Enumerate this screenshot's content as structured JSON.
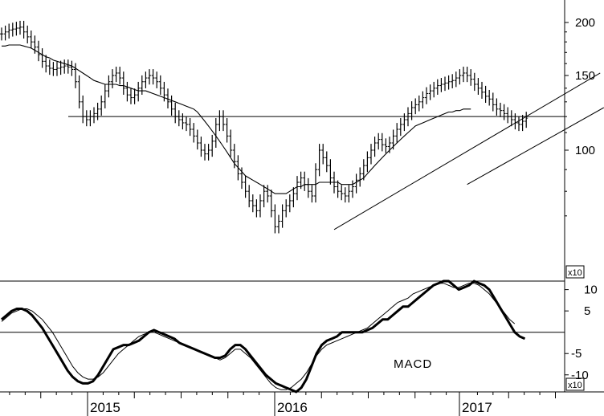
{
  "chart_data": [
    {
      "type": "ohlc",
      "x_unit": "weekly bars (index from start of Jul 2014)",
      "yscale": "log",
      "ylim": [
        62,
        215
      ],
      "y_ticks": [
        200,
        150,
        100
      ],
      "x_tick_labels": [
        "2015",
        "2016",
        "2017"
      ],
      "multiplier_label": "x10",
      "price_close": [
        188,
        190,
        192,
        193,
        194,
        195,
        190,
        185,
        180,
        175,
        168,
        162,
        158,
        156,
        155,
        156,
        157,
        158,
        157,
        155,
        145,
        130,
        120,
        118,
        120,
        122,
        125,
        130,
        138,
        145,
        150,
        152,
        148,
        140,
        135,
        133,
        135,
        140,
        145,
        148,
        150,
        148,
        145,
        140,
        135,
        130,
        125,
        120,
        118,
        116,
        115,
        112,
        108,
        104,
        100,
        98,
        100,
        105,
        115,
        120,
        115,
        108,
        100,
        94,
        88,
        84,
        80,
        76,
        74,
        72,
        76,
        80,
        78,
        72,
        66,
        68,
        72,
        74,
        76,
        79,
        84,
        86,
        83,
        80,
        78,
        90,
        100,
        96,
        92,
        86,
        82,
        80,
        79,
        78,
        80,
        82,
        85,
        88,
        92,
        96,
        100,
        104,
        106,
        103,
        102,
        104,
        108,
        112,
        115,
        118,
        122,
        126,
        128,
        130,
        133,
        136,
        138,
        140,
        142,
        143,
        144,
        145,
        146,
        148,
        150,
        152,
        150,
        147,
        143,
        140,
        137,
        134,
        132,
        128,
        125,
        124,
        122,
        120,
        118,
        116,
        115,
        117,
        119
      ],
      "ma_long": [
        176,
        176,
        177,
        177,
        177,
        177,
        176,
        175,
        174,
        172,
        170,
        168,
        166,
        165,
        163,
        162,
        161,
        160,
        159,
        158,
        156,
        154,
        152,
        150,
        148,
        146,
        145,
        144,
        143,
        143,
        143,
        143,
        142,
        142,
        141,
        140,
        139,
        138,
        138,
        138,
        137,
        136,
        135,
        134,
        133,
        132,
        131,
        130,
        129,
        128,
        127,
        126,
        125,
        123,
        120,
        117,
        114,
        111,
        108,
        105,
        102,
        99,
        96,
        93,
        91,
        89,
        87,
        86,
        85,
        84,
        83,
        82,
        81,
        80,
        79,
        79,
        79,
        79,
        80,
        81,
        82,
        82,
        83,
        83,
        83,
        83,
        84,
        84,
        84,
        84,
        84,
        84,
        83,
        83,
        83,
        83,
        84,
        85,
        86,
        88,
        90,
        92,
        94,
        96,
        98,
        100,
        102,
        104,
        106,
        108,
        110,
        112,
        114,
        115,
        116,
        117,
        118,
        119,
        120,
        121,
        122,
        123,
        123,
        124,
        124,
        125,
        125,
        125
      ],
      "horizontal_line": 120,
      "trendline_rising_1": {
        "from": [
          90,
          65
        ],
        "to": [
          162,
          152
        ]
      },
      "trendline_rising_2": {
        "from": [
          126,
          83
        ],
        "to": [
          163,
          126
        ]
      }
    },
    {
      "type": "line",
      "title": "MACD",
      "ylim": [
        -14,
        12
      ],
      "y_ticks": [
        10,
        5,
        -5,
        -10
      ],
      "multiplier_label": "x10",
      "macd": [
        3,
        4,
        5,
        5.5,
        5.5,
        5,
        4,
        2.5,
        1,
        -1,
        -3,
        -5,
        -7,
        -9,
        -10.5,
        -11.5,
        -12,
        -12,
        -11.5,
        -10,
        -8,
        -6,
        -4,
        -3.5,
        -3,
        -3,
        -2.5,
        -2,
        -1,
        0,
        0.5,
        0,
        -0.5,
        -1,
        -1.5,
        -2.5,
        -3,
        -3.5,
        -4,
        -4.5,
        -5,
        -5.5,
        -6,
        -6,
        -5.5,
        -4,
        -3,
        -3,
        -4,
        -5.5,
        -7,
        -8.5,
        -10,
        -11,
        -12,
        -12.5,
        -13,
        -13.5,
        -14,
        -13,
        -11,
        -8,
        -5,
        -3,
        -2,
        -1.5,
        -1,
        0,
        0,
        0,
        0,
        0,
        0.5,
        1,
        2,
        3,
        3,
        4,
        5,
        6,
        6,
        7,
        8,
        9,
        10,
        11,
        11.5,
        12,
        12,
        11,
        10,
        10.5,
        11,
        12,
        11.5,
        11,
        10,
        8,
        6,
        4,
        2,
        0,
        -1,
        -1.5
      ],
      "signal": [
        2.5,
        3.5,
        4.5,
        5,
        5.5,
        5.5,
        5,
        4,
        3,
        1.5,
        0,
        -2,
        -4,
        -6,
        -8,
        -9.5,
        -10.5,
        -11,
        -11,
        -10.5,
        -9.5,
        -8,
        -6.5,
        -5,
        -4,
        -3,
        -2,
        -1,
        -0.5,
        0,
        0,
        -0.5,
        -1,
        -1.5,
        -2,
        -2.5,
        -3,
        -3.5,
        -4,
        -4.5,
        -5,
        -5.5,
        -6,
        -6.5,
        -6,
        -5,
        -4,
        -4,
        -5,
        -6,
        -7.5,
        -9,
        -10.5,
        -12,
        -13,
        -13.5,
        -13.5,
        -13,
        -12,
        -11,
        -9.5,
        -7.5,
        -5.5,
        -4,
        -3,
        -2.5,
        -2,
        -1.5,
        -1,
        -0.5,
        0,
        0.5,
        1,
        2,
        3,
        4,
        5,
        6,
        7,
        7.5,
        8,
        9,
        9.5,
        10,
        10.5,
        11,
        11.5,
        11.5,
        11,
        10.5,
        10.5,
        11,
        11.5,
        11.5,
        11,
        10,
        9,
        7.5,
        6,
        4.5,
        3,
        2
      ],
      "zero_line": 0
    }
  ]
}
